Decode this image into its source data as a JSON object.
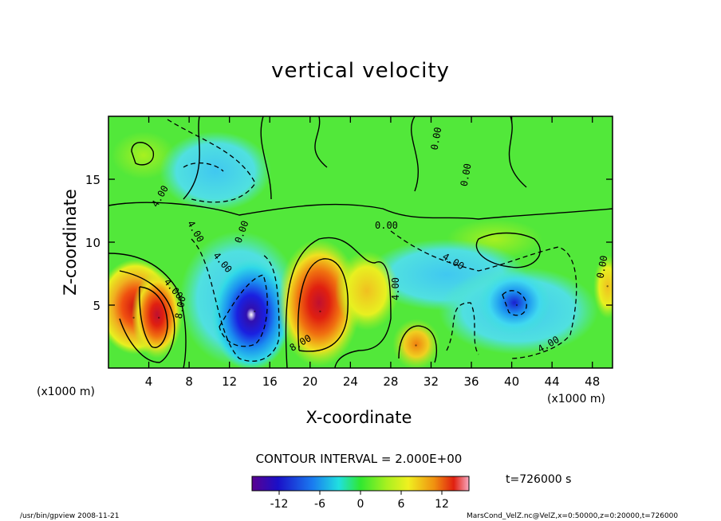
{
  "page": {
    "title": "vertical velocity",
    "contour_interval": "CONTOUR INTERVAL = 2.000E+00",
    "time": "t=726000 s",
    "footer_left": "/usr/bin/gpview  2008-11-21",
    "footer_right": "MarsCond_VelZ.nc@VelZ,x=0:50000,z=0:20000,t=726000"
  },
  "chart_data": {
    "type": "heatmap",
    "title": "vertical velocity",
    "xlabel": "X-coordinate",
    "ylabel": "Z-coordinate",
    "x_unit": "(x1000 m)",
    "y_unit": "(x1000 m)",
    "xlim": [
      0,
      50
    ],
    "ylim": [
      0,
      20
    ],
    "x_ticks": [
      "4",
      "8",
      "12",
      "16",
      "20",
      "24",
      "28",
      "32",
      "36",
      "40",
      "44",
      "48"
    ],
    "y_ticks": [
      "5",
      "10",
      "15"
    ],
    "colorbar": {
      "ticks": [
        "-12",
        "-6",
        "0",
        "6",
        "12"
      ],
      "range": [
        -16,
        16
      ]
    },
    "features": [
      {
        "name": "updraft-1",
        "x": 2.5,
        "z": 4.0,
        "value": 11
      },
      {
        "name": "updraft-2",
        "x": 5.0,
        "z": 4.0,
        "value": 12
      },
      {
        "name": "downdraft-1",
        "x": 14.5,
        "z": 4.5,
        "value": -15
      },
      {
        "name": "updraft-3",
        "x": 21.0,
        "z": 4.5,
        "value": 12
      },
      {
        "name": "updraft-4",
        "x": 30.5,
        "z": 1.8,
        "value": 8
      },
      {
        "name": "downdraft-2",
        "x": 40.5,
        "z": 5.0,
        "value": -11
      },
      {
        "name": "updraft-5",
        "x": 49.5,
        "z": 6.5,
        "value": 5
      }
    ],
    "contour_labels": [
      "0.00",
      "0.00",
      "0.00",
      "0.00",
      "4.00",
      "4.00",
      "4.00",
      "4.00",
      "4.00",
      "4.00",
      "8.00",
      "8.00",
      "0.00",
      "4.00"
    ]
  }
}
